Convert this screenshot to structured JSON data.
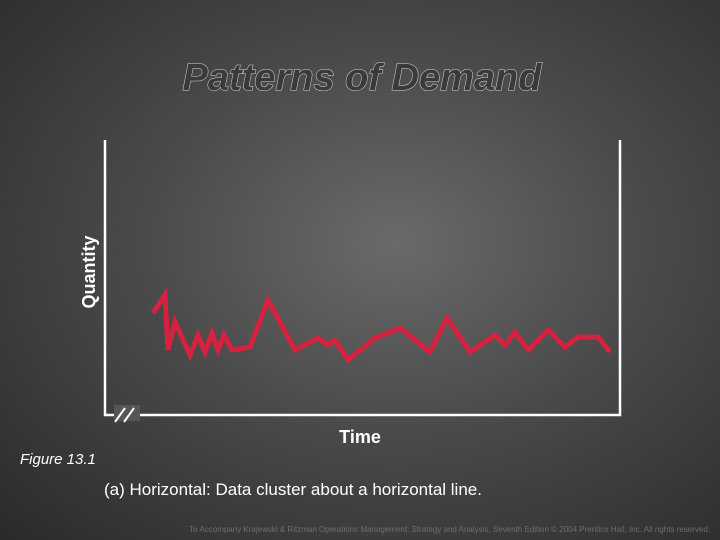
{
  "slide": {
    "title": "Patterns of Demand",
    "y_axis_label": "Quantity",
    "x_axis_label": "Time",
    "figure_label": "Figure 13.1",
    "caption": "(a) Horizontal: Data cluster about a horizontal line.",
    "footer": "To Accompany Krajewski & Ritzman Operations Management: Strategy and Analysis, Seventh Edition © 2004 Prentice Hall, Inc. All rights reserved."
  }
}
